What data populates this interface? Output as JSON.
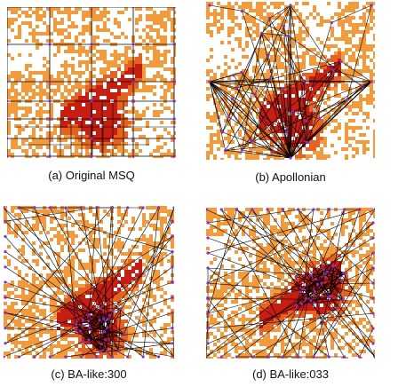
{
  "figure": {
    "panels": [
      {
        "id": "a",
        "caption": "(a) Original MSQ"
      },
      {
        "id": "b",
        "caption": "(b) Apollonian"
      },
      {
        "id": "c",
        "caption": "(c) BA-like:300"
      },
      {
        "id": "d",
        "caption": "(d) BA-like:033"
      }
    ]
  },
  "colors": {
    "background": "#ffffff",
    "population_light": "#f39a3a",
    "population_mid": "#e8621f",
    "population_dense": "#c81e12",
    "edge": "#000000",
    "node": "#8a2bd0"
  }
}
